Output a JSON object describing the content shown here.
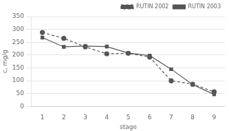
{
  "chart_data": {
    "type": "line",
    "x": [
      1,
      2,
      3,
      4,
      5,
      6,
      7,
      8,
      9
    ],
    "series": [
      {
        "name": "RUTIN 2002",
        "color": "#555555",
        "values": [
          288,
          265,
          232,
          205,
          207,
          192,
          100,
          87,
          57
        ],
        "marker": "circle",
        "line_style": "dashed"
      },
      {
        "name": "RUTIN 2003",
        "color": "#555555",
        "values": [
          268,
          232,
          235,
          233,
          208,
          198,
          145,
          85,
          47
        ],
        "marker": "square",
        "line_style": "solid"
      }
    ],
    "xlabel": "stage",
    "ylabel": "c, mg/g",
    "xlim": [
      0.5,
      9.5
    ],
    "xticks": [
      1,
      2,
      3,
      4,
      5,
      6,
      7,
      8,
      9
    ],
    "ylim": [
      0,
      350
    ],
    "yticks": [
      0,
      50,
      100,
      150,
      200,
      250,
      300,
      350
    ],
    "grid": "y",
    "legend": "upper right"
  }
}
